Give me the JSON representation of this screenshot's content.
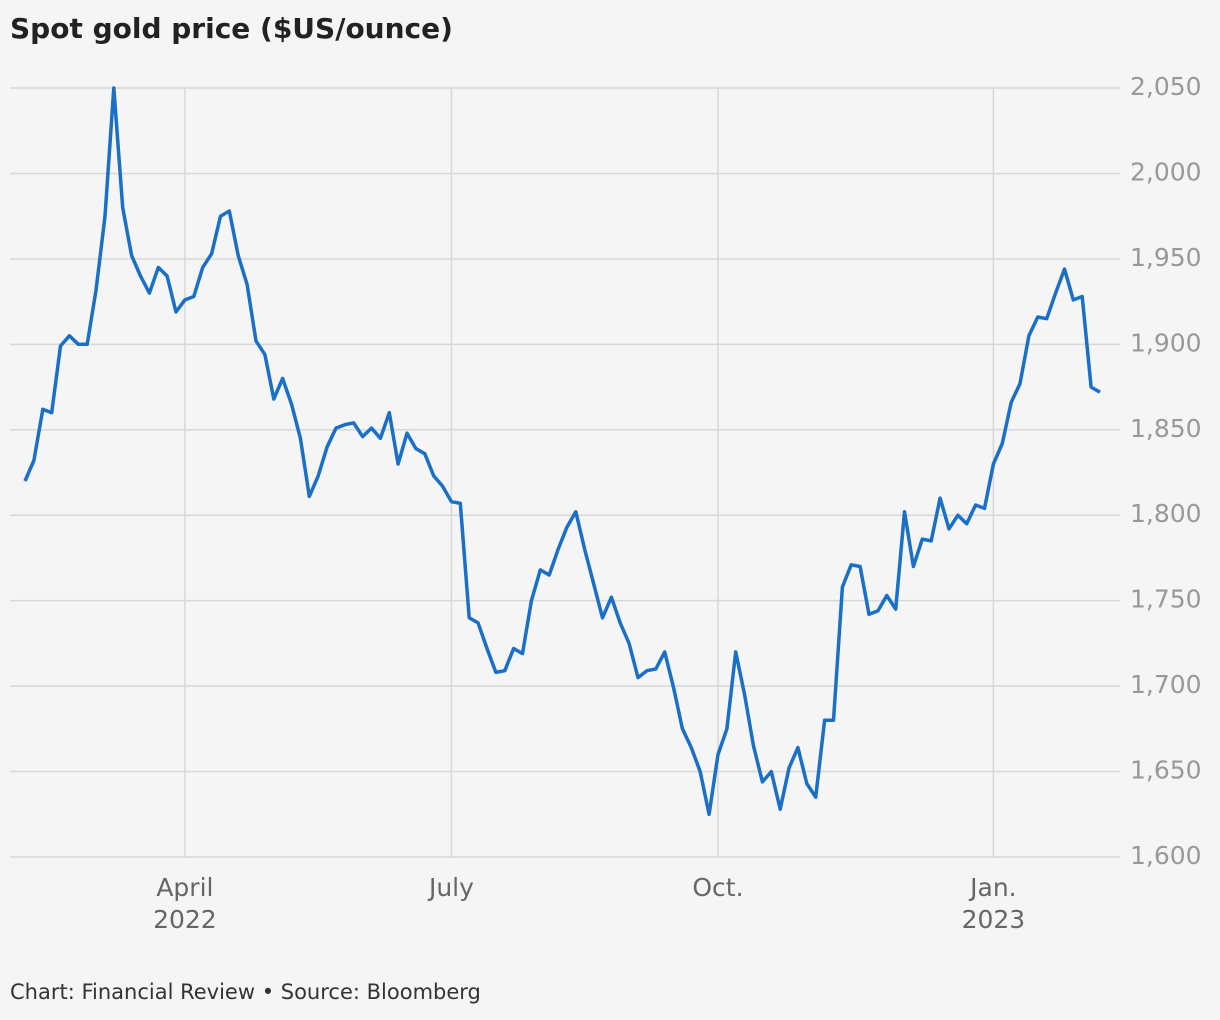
{
  "chart_data": {
    "type": "line",
    "title": "Spot gold price ($US/ounce)",
    "footer": "Chart: Financial Review • Source: Bloomberg",
    "categories": [
      null,
      null,
      null,
      null,
      null,
      null,
      null,
      null,
      null,
      null,
      null,
      null,
      null,
      null,
      null,
      null,
      null,
      null,
      "April\n2022",
      null,
      null,
      null,
      null,
      null,
      null,
      null,
      null,
      null,
      null,
      null,
      null,
      null,
      null,
      null,
      null,
      null,
      null,
      null,
      null,
      null,
      null,
      null,
      null,
      null,
      null,
      null,
      null,
      null,
      "July",
      null,
      null,
      null,
      null,
      null,
      null,
      null,
      null,
      null,
      null,
      null,
      null,
      null,
      null,
      null,
      null,
      null,
      null,
      null,
      null,
      null,
      null,
      null,
      null,
      null,
      null,
      null,
      null,
      null,
      "Oct.",
      null,
      null,
      null,
      null,
      null,
      null,
      null,
      null,
      null,
      null,
      null,
      null,
      null,
      null,
      null,
      null,
      null,
      null,
      null,
      null,
      null,
      null,
      null,
      null,
      null,
      null,
      null,
      null,
      null,
      null,
      "Jan.\n2023",
      null,
      null,
      null,
      null,
      null,
      null,
      null,
      null,
      null,
      null,
      null,
      null
    ],
    "series": [
      {
        "name": "Spot gold",
        "color": "#1a6fc9",
        "values": [
          1820,
          1832,
          1862,
          1860,
          1899,
          1905,
          1900,
          1900,
          1932,
          1975,
          2050,
          1980,
          1952,
          1940,
          1930,
          1945,
          1940,
          1919,
          1926,
          1928,
          1945,
          1953,
          1975,
          1978,
          1952,
          1935,
          1902,
          1894,
          1868,
          1880,
          1865,
          1845,
          1811,
          1823,
          1840,
          1851,
          1853,
          1854,
          1846,
          1851,
          1845,
          1860,
          1830,
          1848,
          1839,
          1836,
          1823,
          1817,
          1808,
          1807,
          1740,
          1737,
          1722,
          1708,
          1709,
          1722,
          1719,
          1750,
          1768,
          1765,
          1780,
          1793,
          1802,
          1780,
          1760,
          1740,
          1752,
          1737,
          1725,
          1705,
          1709,
          1710,
          1720,
          1699,
          1675,
          1664,
          1650,
          1625,
          1660,
          1675,
          1720,
          1695,
          1665,
          1644,
          1650,
          1628,
          1652,
          1664,
          1643,
          1635,
          1680,
          1680,
          1758,
          1771,
          1770,
          1742,
          1744,
          1753,
          1745,
          1802,
          1770,
          1786,
          1785,
          1810,
          1792,
          1800,
          1795,
          1806,
          1804,
          1830,
          1842,
          1866,
          1877,
          1905,
          1916,
          1915,
          1930,
          1944,
          1926,
          1928,
          1875,
          1872
        ]
      }
    ],
    "ylim": [
      1600,
      2050
    ],
    "yticks": [
      {
        "value": 1600,
        "label": "1,600"
      },
      {
        "value": 1650,
        "label": "1,650"
      },
      {
        "value": 1700,
        "label": "1,700"
      },
      {
        "value": 1750,
        "label": "1,750"
      },
      {
        "value": 1800,
        "label": "1,800"
      },
      {
        "value": 1850,
        "label": "1,850"
      },
      {
        "value": 1900,
        "label": "1,900"
      },
      {
        "value": 1950,
        "label": "1,950"
      },
      {
        "value": 2000,
        "label": "2,000"
      },
      {
        "value": 2050,
        "label": "2,050"
      }
    ],
    "grid": true
  }
}
